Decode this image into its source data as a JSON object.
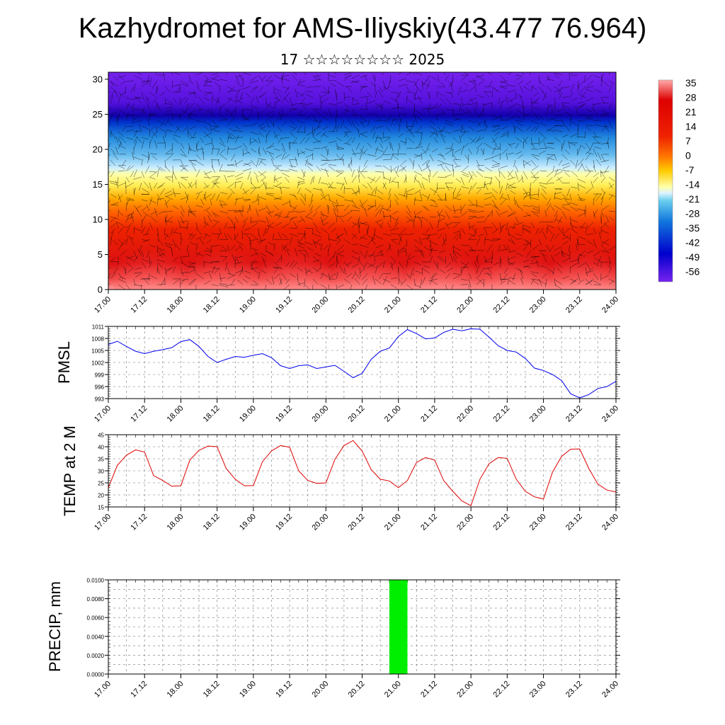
{
  "title": "Kazhydromet for AMS-Iliyskiy(43.477 76.964)",
  "subtitle": "17 ☆☆☆☆☆☆☆☆ 2025",
  "time_ticks": [
    "17.00",
    "17.12",
    "18.00",
    "18.12",
    "19.00",
    "19.12",
    "20.00",
    "20.12",
    "21.00",
    "21.12",
    "22.00",
    "22.12",
    "23.00",
    "23.12",
    "24.00"
  ],
  "chart_data": [
    {
      "type": "heatmap",
      "y_ticks": [
        "0",
        "5",
        "10",
        "15",
        "20",
        "25",
        "30"
      ],
      "ylim": [
        0,
        31
      ],
      "colorbar": {
        "labels": [
          "35",
          "28",
          "21",
          "14",
          "7",
          "0",
          "-7",
          "-14",
          "-21",
          "-28",
          "-35",
          "-42",
          "-49",
          "-56"
        ]
      }
    },
    {
      "type": "line",
      "ylabel": "PMSL",
      "ylim": [
        993,
        1011
      ],
      "y_ticks": [
        "993",
        "996",
        "999",
        "1002",
        "1005",
        "1008",
        "1011"
      ],
      "color": "#0000ee",
      "x": [
        0,
        3,
        6,
        9,
        12,
        15,
        18,
        21,
        24,
        27,
        30,
        33,
        36,
        39,
        42,
        45,
        48,
        51,
        54,
        57,
        60,
        63,
        66,
        69,
        72,
        75,
        78,
        81,
        84,
        87,
        90,
        93,
        96,
        99,
        102,
        105,
        108,
        111,
        114,
        117,
        120,
        123,
        126,
        129,
        132,
        135,
        138,
        141,
        144,
        147,
        150,
        153,
        156,
        159,
        162,
        165,
        168
      ],
      "values": [
        1006.5,
        1007.3,
        1006,
        1004.8,
        1004.2,
        1004.8,
        1005.2,
        1005.7,
        1007.2,
        1007.7,
        1006,
        1003.5,
        1002,
        1002.8,
        1003.5,
        1003.3,
        1003.8,
        1004.2,
        1003.2,
        1001.2,
        1000.5,
        1001.2,
        1001.4,
        1000.5,
        1000.9,
        1001.3,
        999.8,
        998.2,
        999.3,
        1002.8,
        1004.8,
        1005.6,
        1008.5,
        1010.2,
        1009.2,
        1007.9,
        1008.1,
        1009.5,
        1010.3,
        1009.9,
        1010.4,
        1010.3,
        1008.3,
        1006.2,
        1005,
        1004.6,
        1003,
        1000.6,
        1000,
        999,
        997.5,
        994.2,
        993.2,
        994,
        995.5,
        996,
        997.3
      ]
    },
    {
      "type": "line",
      "ylabel": "TEMP at 2 M",
      "ylim": [
        15,
        45
      ],
      "y_ticks": [
        "15",
        "20",
        "25",
        "30",
        "35",
        "40",
        "45"
      ],
      "color": "#dd0000",
      "x": [
        0,
        3,
        6,
        9,
        12,
        15,
        18,
        21,
        24,
        27,
        30,
        33,
        36,
        39,
        42,
        45,
        48,
        51,
        54,
        57,
        60,
        63,
        66,
        69,
        72,
        75,
        78,
        81,
        84,
        87,
        90,
        93,
        96,
        99,
        102,
        105,
        108,
        111,
        114,
        117,
        120,
        123,
        126,
        129,
        132,
        135,
        138,
        141,
        144,
        147,
        150,
        153,
        156,
        159,
        162,
        165,
        168
      ],
      "values": [
        23,
        32.3,
        36.5,
        38.7,
        37.8,
        28,
        26,
        23.6,
        23.8,
        34.5,
        38.5,
        40.3,
        40,
        31,
        26.5,
        23.8,
        23.9,
        33.8,
        38.3,
        40.5,
        39.8,
        30,
        26,
        24.8,
        25,
        34.8,
        40.5,
        42.6,
        38.2,
        30.5,
        26.5,
        25.8,
        23,
        26,
        33.5,
        35.5,
        34.5,
        25.9,
        21.5,
        17.5,
        15.5,
        26.5,
        33,
        35.5,
        35.2,
        26.5,
        21.5,
        19.2,
        18.3,
        29.5,
        36,
        39,
        39.1,
        31,
        24.5,
        22,
        21.2
      ]
    },
    {
      "type": "bar",
      "ylabel": "PRECIP, mm",
      "ylim": [
        0,
        0.01
      ],
      "y_ticks": [
        "0.0000",
        "0.0020",
        "0.0040",
        "0.0060",
        "0.0080",
        "0.0100"
      ],
      "color": "#00ee00",
      "x": [
        96
      ],
      "values": [
        0.01
      ]
    }
  ]
}
